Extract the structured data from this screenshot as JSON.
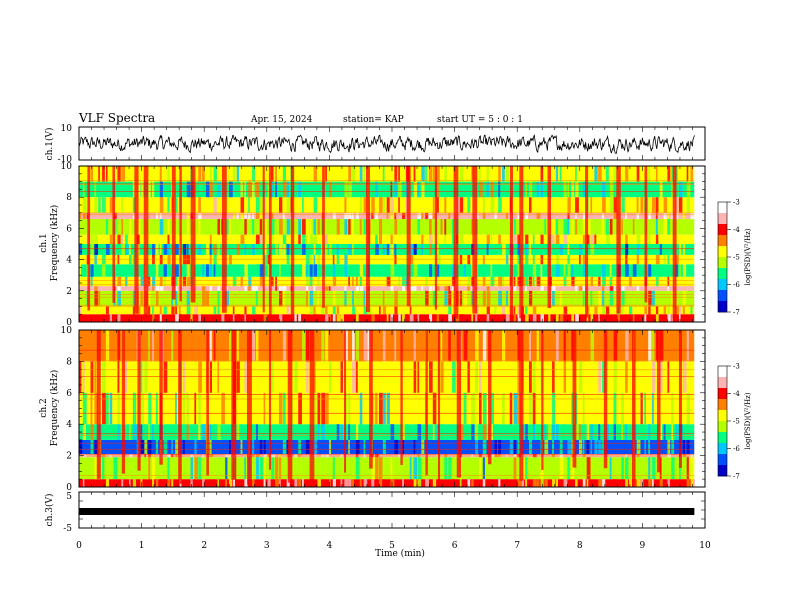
{
  "header": {
    "title": "VLF Spectra",
    "date": "Apr. 15, 2024",
    "station": "station= KAP",
    "start": "start  UT  =   5 : 0  : 1"
  },
  "chart_data": [
    {
      "type": "line",
      "name": "ch1-waveform",
      "ylabel": "ch.1(V)",
      "ylim": [
        -10,
        10
      ],
      "yticks": [
        "10",
        "-10"
      ],
      "xlim": [
        0,
        10
      ],
      "data_extent_min": 9.83,
      "description_values": "noisy waveform oscillating roughly between -6 and +5 V across 0-9.83 min",
      "amplitude_range": [
        -6,
        5
      ]
    },
    {
      "type": "heatmap",
      "name": "ch1-spectrogram",
      "ylabel": "ch.1\nFrequency  (kHz)",
      "ylabel_lines": [
        "ch.1",
        "Frequency  (kHz)"
      ],
      "ylim": [
        0,
        10
      ],
      "yticks": [
        "0",
        "2",
        "4",
        "6",
        "8",
        "10"
      ],
      "xlim": [
        0,
        10
      ],
      "colorbar": {
        "label": "log(PSD)(V²/Hz)",
        "range": [
          -7,
          -3
        ],
        "ticks": [
          "-3",
          "-4",
          "-5",
          "-6",
          "-7"
        ]
      },
      "bands": [
        {
          "f0": 0.0,
          "f1": 0.5,
          "level": -4.0
        },
        {
          "f0": 0.5,
          "f1": 1.0,
          "level": -4.8
        },
        {
          "f0": 1.0,
          "f1": 2.0,
          "level": -5.2
        },
        {
          "f0": 2.0,
          "f1": 2.3,
          "level": -3.6
        },
        {
          "f0": 2.3,
          "f1": 2.9,
          "level": -5.0
        },
        {
          "f0": 2.9,
          "f1": 3.7,
          "level": -5.8
        },
        {
          "f0": 3.7,
          "f1": 4.3,
          "level": -5.0
        },
        {
          "f0": 4.3,
          "f1": 5.0,
          "level": -5.7
        },
        {
          "f0": 5.0,
          "f1": 5.6,
          "level": -4.7
        },
        {
          "f0": 5.6,
          "f1": 6.6,
          "level": -5.2
        },
        {
          "f0": 6.6,
          "f1": 7.0,
          "level": -3.8
        },
        {
          "f0": 7.0,
          "f1": 8.0,
          "level": -4.8
        },
        {
          "f0": 8.0,
          "f1": 9.0,
          "level": -5.4
        },
        {
          "f0": 9.0,
          "f1": 10.0,
          "level": -5.0
        }
      ],
      "bursts_min": [
        0.15,
        0.55,
        0.9,
        1.05,
        1.5,
        1.62,
        1.8,
        2.3,
        2.95,
        3.05,
        3.4,
        3.9,
        4.6,
        5.25,
        5.7,
        6.0,
        6.3,
        6.9,
        7.05,
        7.5,
        8.1,
        8.6,
        9.05,
        9.5
      ]
    },
    {
      "type": "heatmap",
      "name": "ch2-spectrogram",
      "ylabel": "ch.2\nFrequency  (kHz)",
      "ylabel_lines": [
        "ch.2",
        "Frequency  (kHz)"
      ],
      "ylim": [
        0,
        10
      ],
      "yticks": [
        "0",
        "2",
        "4",
        "6",
        "8",
        "10"
      ],
      "xlim": [
        0,
        10
      ],
      "colorbar": {
        "label": "log(PSD)(V²/Hz)",
        "range": [
          -7,
          -3
        ],
        "ticks": [
          "-3",
          "-4",
          "-5",
          "-6",
          "-7"
        ]
      },
      "bands": [
        {
          "f0": 0.0,
          "f1": 0.5,
          "level": -4.2
        },
        {
          "f0": 0.5,
          "f1": 1.9,
          "level": -5.3
        },
        {
          "f0": 1.9,
          "f1": 2.1,
          "level": -3.7
        },
        {
          "f0": 2.1,
          "f1": 3.0,
          "level": -6.2
        },
        {
          "f0": 3.0,
          "f1": 4.0,
          "level": -5.6
        },
        {
          "f0": 4.0,
          "f1": 6.0,
          "level": -5.0
        },
        {
          "f0": 6.0,
          "f1": 8.0,
          "level": -4.7
        },
        {
          "f0": 8.0,
          "f1": 10.0,
          "level": -4.4
        }
      ],
      "bursts_min": [
        0.3,
        0.7,
        0.95,
        1.3,
        1.6,
        2.05,
        2.45,
        2.7,
        3.05,
        3.35,
        3.7,
        4.25,
        4.65,
        5.15,
        5.55,
        5.75,
        6.05,
        6.55,
        7.05,
        7.4,
        7.9,
        8.4,
        8.85,
        9.25,
        9.6
      ]
    },
    {
      "type": "line",
      "name": "ch3-waveform",
      "ylabel": "ch.3(V)",
      "ylim": [
        -5,
        5
      ],
      "yticks": [
        "5",
        "0",
        "-5"
      ],
      "xlim": [
        0,
        10
      ],
      "data_extent_min": 9.83,
      "level_range": [
        -0.4,
        0.4
      ]
    }
  ],
  "xaxis": {
    "label": "Time  (min)",
    "ticks": [
      "0",
      "1",
      "2",
      "3",
      "4",
      "5",
      "6",
      "7",
      "8",
      "9",
      "10"
    ]
  },
  "colors": {
    "scale": [
      "#0000c8",
      "#0050ff",
      "#00c8ff",
      "#00ff80",
      "#b4ff00",
      "#ffff00",
      "#ff8000",
      "#ff0000",
      "#ffb4b4",
      "#ffffff"
    ]
  }
}
